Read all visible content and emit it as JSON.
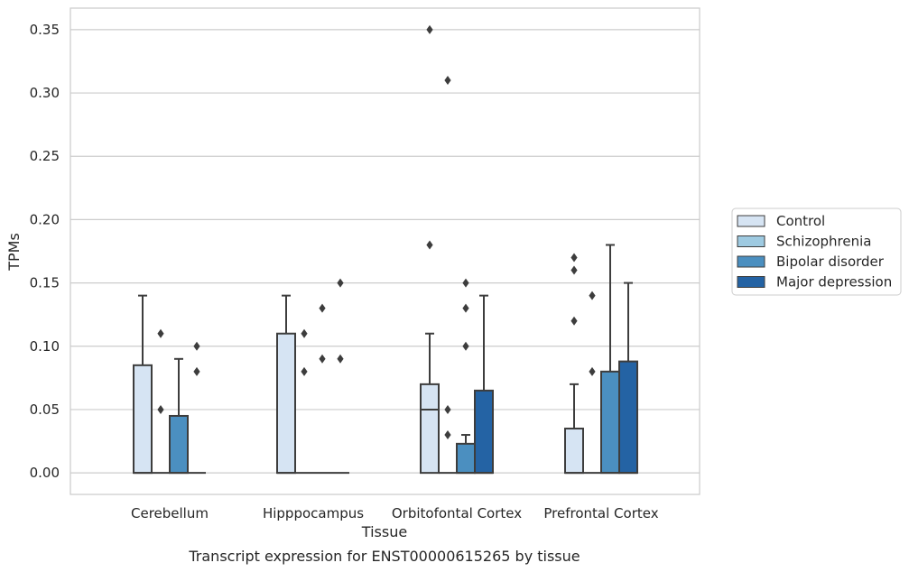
{
  "chart_data": {
    "type": "boxplot",
    "xlabel": "Tissue",
    "ylabel": "TPMs",
    "caption": "Transcript expression for ENST00000615265 by tissue",
    "ylim": [
      -0.017,
      0.367
    ],
    "yticks": [
      "0.00",
      "0.05",
      "0.10",
      "0.15",
      "0.20",
      "0.25",
      "0.30",
      "0.35"
    ],
    "grid": true,
    "legend_position": "right",
    "categories": [
      "Cerebellum",
      "Hipppocampus",
      "Orbitofontal Cortex",
      "Prefrontal Cortex"
    ],
    "series": [
      {
        "name": "Control",
        "color": "#d6e4f3",
        "boxes": [
          {
            "q1": 0.0,
            "median": 0.0,
            "q3": 0.085,
            "whisker_low": 0.0,
            "whisker_high": 0.14,
            "outliers": []
          },
          {
            "q1": 0.0,
            "median": 0.0,
            "q3": 0.11,
            "whisker_low": 0.0,
            "whisker_high": 0.14,
            "outliers": []
          },
          {
            "q1": 0.0,
            "median": 0.05,
            "q3": 0.07,
            "whisker_low": 0.0,
            "whisker_high": 0.11,
            "outliers": [
              0.18,
              0.35
            ]
          },
          {
            "q1": 0.0,
            "median": 0.0,
            "q3": 0.035,
            "whisker_low": 0.0,
            "whisker_high": 0.07,
            "outliers": [
              0.12,
              0.16,
              0.17
            ]
          }
        ]
      },
      {
        "name": "Schizophrenia",
        "color": "#9ecae1",
        "boxes": [
          {
            "q1": 0.0,
            "median": 0.0,
            "q3": 0.0,
            "whisker_low": 0.0,
            "whisker_high": 0.0,
            "outliers": [
              0.05,
              0.11
            ]
          },
          {
            "q1": 0.0,
            "median": 0.0,
            "q3": 0.0,
            "whisker_low": 0.0,
            "whisker_high": 0.0,
            "outliers": [
              0.08,
              0.11
            ]
          },
          {
            "q1": 0.0,
            "median": 0.0,
            "q3": 0.0,
            "whisker_low": 0.0,
            "whisker_high": 0.0,
            "outliers": [
              0.03,
              0.05,
              0.31
            ]
          },
          {
            "q1": 0.0,
            "median": 0.0,
            "q3": 0.0,
            "whisker_low": 0.0,
            "whisker_high": 0.0,
            "outliers": [
              0.08,
              0.14
            ]
          }
        ]
      },
      {
        "name": "Bipolar disorder",
        "color": "#4b8fc0",
        "boxes": [
          {
            "q1": 0.0,
            "median": 0.0,
            "q3": 0.045,
            "whisker_low": 0.0,
            "whisker_high": 0.09,
            "outliers": []
          },
          {
            "q1": 0.0,
            "median": 0.0,
            "q3": 0.0,
            "whisker_low": 0.0,
            "whisker_high": 0.0,
            "outliers": [
              0.09,
              0.13
            ]
          },
          {
            "q1": 0.0,
            "median": 0.0,
            "q3": 0.023,
            "whisker_low": 0.0,
            "whisker_high": 0.03,
            "outliers": [
              0.1,
              0.13,
              0.15
            ]
          },
          {
            "q1": 0.0,
            "median": 0.0,
            "q3": 0.08,
            "whisker_low": 0.0,
            "whisker_high": 0.18,
            "outliers": []
          }
        ]
      },
      {
        "name": "Major depression",
        "color": "#2463a4",
        "boxes": [
          {
            "q1": 0.0,
            "median": 0.0,
            "q3": 0.0,
            "whisker_low": 0.0,
            "whisker_high": 0.0,
            "outliers": [
              0.08,
              0.1
            ]
          },
          {
            "q1": 0.0,
            "median": 0.0,
            "q3": 0.0,
            "whisker_low": 0.0,
            "whisker_high": 0.0,
            "outliers": [
              0.09,
              0.15
            ]
          },
          {
            "q1": 0.0,
            "median": 0.0,
            "q3": 0.065,
            "whisker_low": 0.0,
            "whisker_high": 0.14,
            "outliers": []
          },
          {
            "q1": 0.0,
            "median": 0.0,
            "q3": 0.088,
            "whisker_low": 0.0,
            "whisker_high": 0.15,
            "outliers": []
          }
        ]
      }
    ]
  }
}
